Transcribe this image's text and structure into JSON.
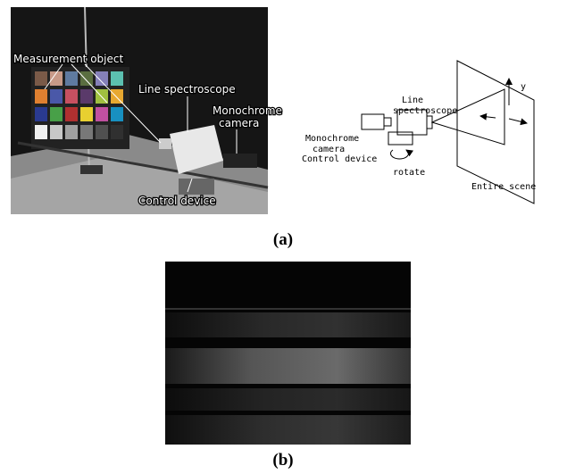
{
  "figure_a": {
    "photo_labels": {
      "measurement_object": "Measurement object",
      "line_spectroscope": "Line spectroscope",
      "monochrome_camera": [
        "Monochrome",
        "camera"
      ],
      "control_device": "Control device"
    },
    "diagram_labels": {
      "monochrome_camera": [
        "Monochrome",
        "camera"
      ],
      "line_spectroscope": [
        "Line",
        "spectroscope"
      ],
      "control_device": "Control device",
      "rotate": "rotate",
      "entire_scene": "Entire scene",
      "y_axis": "y"
    },
    "caption": "(a)"
  },
  "figure_b": {
    "caption": "(b)"
  }
}
